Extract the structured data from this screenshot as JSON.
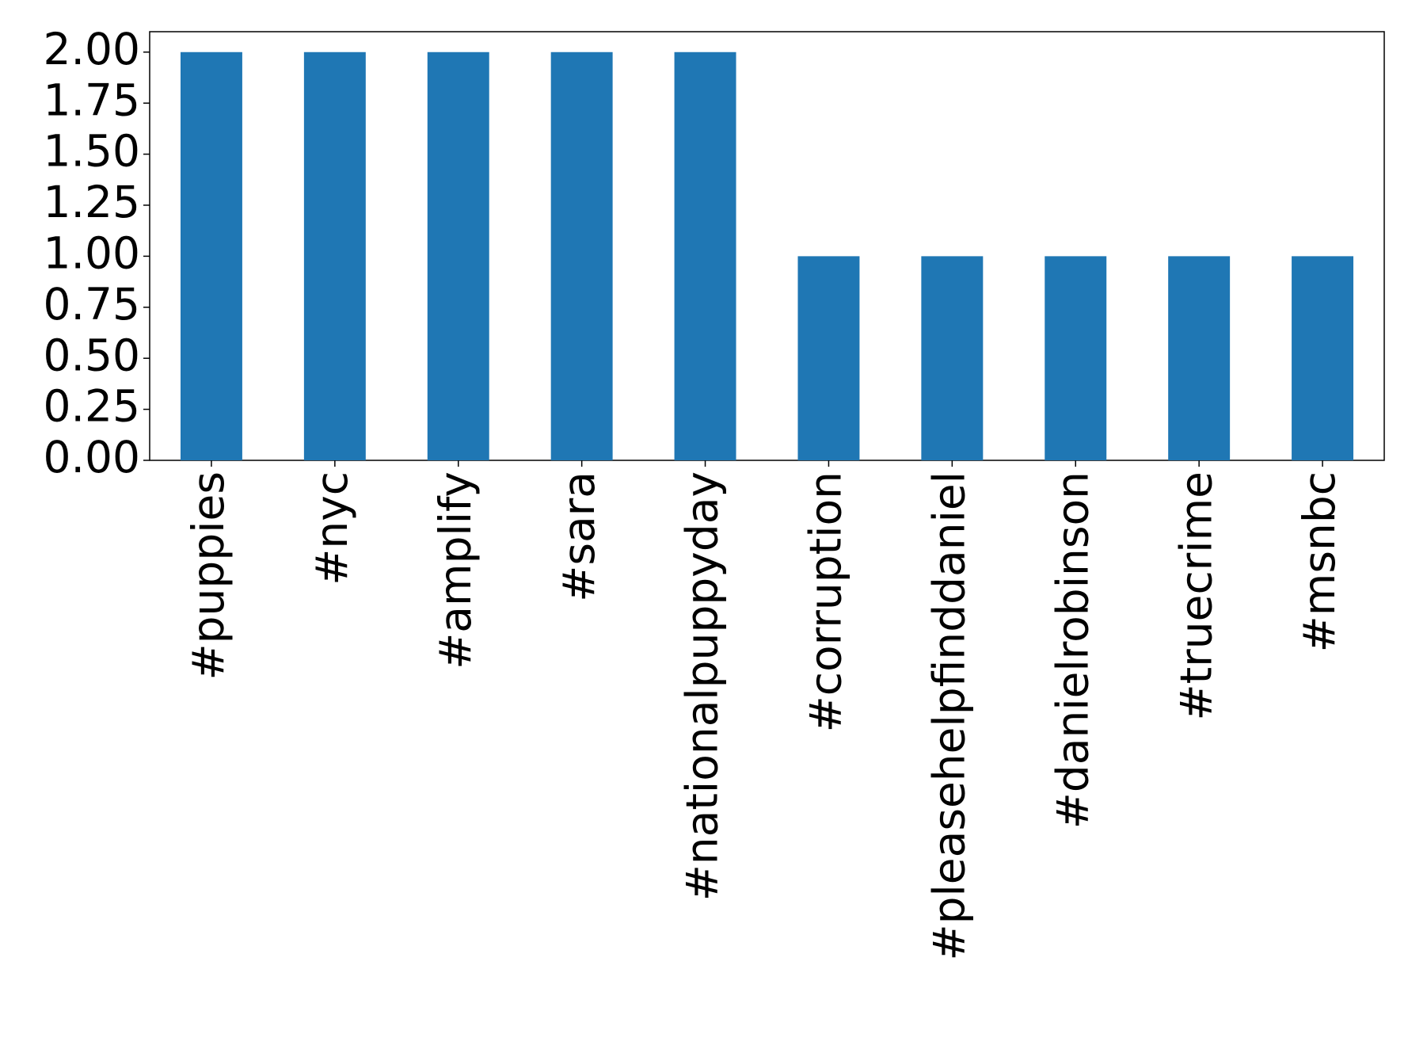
{
  "chart_data": {
    "type": "bar",
    "categories": [
      "#puppies",
      "#nyc",
      "#amplify",
      "#sara",
      "#nationalpuppyday",
      "#corruption",
      "#pleasehelpfinddaniel",
      "#danielrobinson",
      "#truecrime",
      "#msnbc"
    ],
    "values": [
      2,
      2,
      2,
      2,
      2,
      1,
      1,
      1,
      1,
      1
    ],
    "color": "#1f77b4",
    "ylim": [
      0,
      2.1
    ],
    "yticks": [
      {
        "value": 0,
        "label": "0.00"
      },
      {
        "value": 0.25,
        "label": "0.25"
      },
      {
        "value": 0.5,
        "label": "0.50"
      },
      {
        "value": 0.75,
        "label": "0.75"
      },
      {
        "value": 1,
        "label": "1.00"
      },
      {
        "value": 1.25,
        "label": "1.25"
      },
      {
        "value": 1.5,
        "label": "1.50"
      },
      {
        "value": 1.75,
        "label": "1.75"
      },
      {
        "value": 2,
        "label": "2.00"
      }
    ],
    "grid": false
  }
}
